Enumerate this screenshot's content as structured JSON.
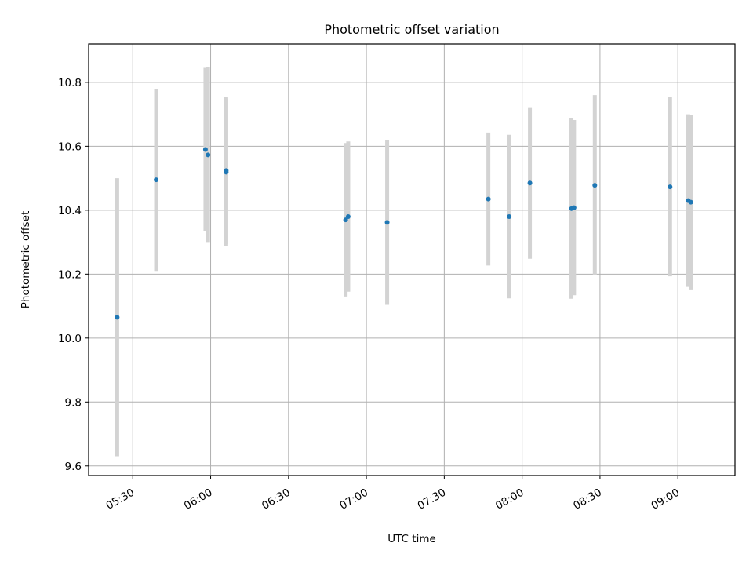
{
  "chart_data": {
    "type": "scatter",
    "title": "Photometric offset variation",
    "xlabel": "UTC time",
    "ylabel": "Photometric offset",
    "x_unit": "HH:MM UTC",
    "xlim": [
      "05:13",
      "09:22"
    ],
    "ylim": [
      9.57,
      10.92
    ],
    "x_ticks": [
      "05:30",
      "06:00",
      "06:30",
      "07:00",
      "07:30",
      "08:00",
      "08:30",
      "09:00"
    ],
    "y_ticks": [
      9.6,
      9.8,
      10.0,
      10.2,
      10.4,
      10.6,
      10.8
    ],
    "y_tick_labels": [
      "9.6",
      "9.8",
      "10.0",
      "10.2",
      "10.4",
      "10.6",
      "10.8"
    ],
    "grid": true,
    "legend": "none",
    "colors": {
      "points": "#1f77b4",
      "errorbars": "#d3d3d3",
      "grid": "#b0b0b0"
    },
    "points": [
      {
        "t": "05:24",
        "y": 10.065,
        "err": 0.435
      },
      {
        "t": "05:39",
        "y": 10.495,
        "err": 0.285
      },
      {
        "t": "05:58",
        "y": 10.59,
        "err": 0.255
      },
      {
        "t": "05:59",
        "y": 10.573,
        "err": 0.275
      },
      {
        "t": "06:06",
        "y": 10.524,
        "err": 0.23
      },
      {
        "t": "06:06",
        "y": 10.519,
        "err": 0.23
      },
      {
        "t": "06:52",
        "y": 10.37,
        "err": 0.24
      },
      {
        "t": "06:53",
        "y": 10.38,
        "err": 0.235
      },
      {
        "t": "07:08",
        "y": 10.362,
        "err": 0.258
      },
      {
        "t": "07:47",
        "y": 10.435,
        "err": 0.208
      },
      {
        "t": "07:55",
        "y": 10.38,
        "err": 0.256
      },
      {
        "t": "08:03",
        "y": 10.485,
        "err": 0.237
      },
      {
        "t": "08:19",
        "y": 10.405,
        "err": 0.282
      },
      {
        "t": "08:20",
        "y": 10.408,
        "err": 0.274
      },
      {
        "t": "08:28",
        "y": 10.478,
        "err": 0.282
      },
      {
        "t": "08:57",
        "y": 10.473,
        "err": 0.28
      },
      {
        "t": "09:04",
        "y": 10.43,
        "err": 0.27
      },
      {
        "t": "09:05",
        "y": 10.425,
        "err": 0.273
      }
    ]
  }
}
